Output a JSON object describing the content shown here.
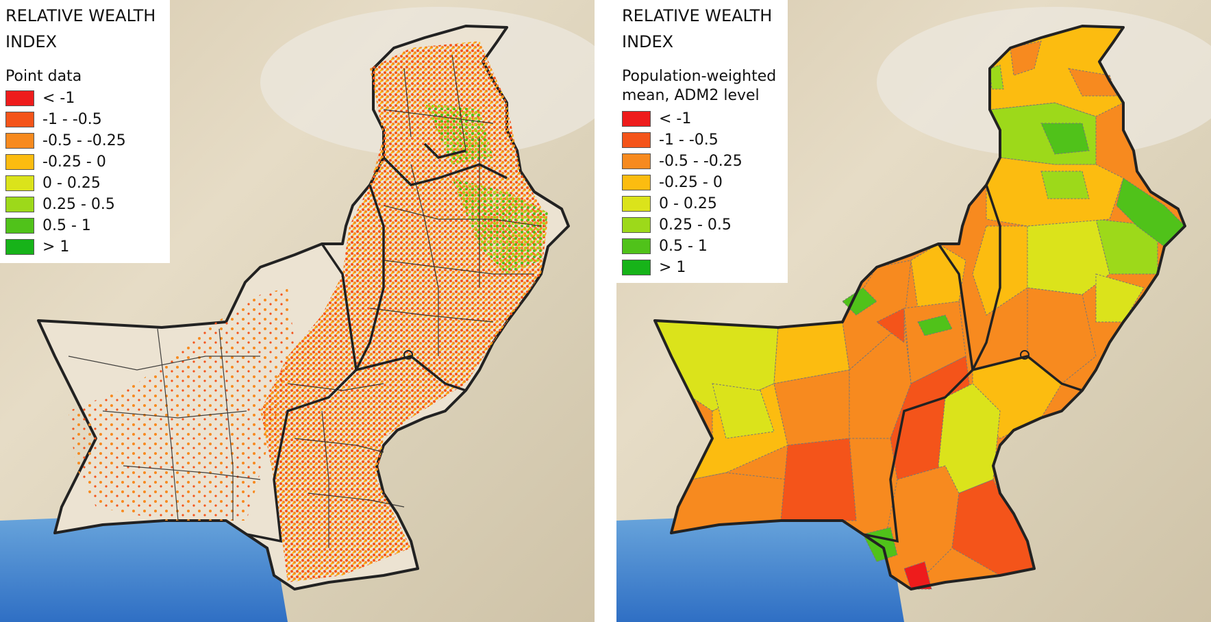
{
  "panels": [
    {
      "id": "left",
      "title": "RELATIVE WEALTH INDEX",
      "subtitle": "Point data",
      "legend": [
        {
          "label": "< -1",
          "color": "#ee1c1c"
        },
        {
          "label": "-1 - -0.5",
          "color": "#f4541a"
        },
        {
          "label": "-0.5 - -0.25",
          "color": "#f78a1f"
        },
        {
          "label": "-0.25 - 0",
          "color": "#fcbc10"
        },
        {
          "label": "0 - 0.25",
          "color": "#dbe31b"
        },
        {
          "label": "0.25 - 0.5",
          "color": "#9dd91a"
        },
        {
          "label": "0.5 - 1",
          "color": "#50c21a"
        },
        {
          "label": "> 1",
          "color": "#17b319"
        }
      ]
    },
    {
      "id": "right",
      "title": "RELATIVE WEALTH INDEX",
      "subtitle": "Population-weighted mean, ADM2 level",
      "legend": [
        {
          "label": "< -1",
          "color": "#ee1c1c"
        },
        {
          "label": "-1 - -0.5",
          "color": "#f4541a"
        },
        {
          "label": "-0.5 - -0.25",
          "color": "#f78a1f"
        },
        {
          "label": "-0.25 - 0",
          "color": "#fcbc10"
        },
        {
          "label": "0 - 0.25",
          "color": "#dbe31b"
        },
        {
          "label": "0.25 - 0.5",
          "color": "#9dd91a"
        },
        {
          "label": "0.5 - 1",
          "color": "#50c21a"
        },
        {
          "label": "> 1",
          "color": "#17b319"
        }
      ]
    }
  ]
}
